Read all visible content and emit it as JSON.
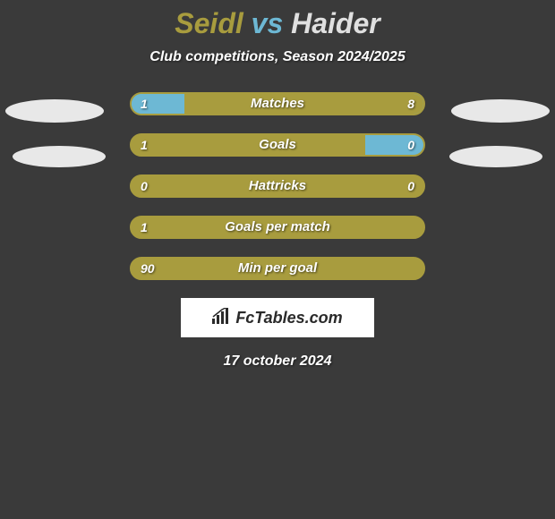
{
  "title": {
    "player1": "Seidl",
    "vs": "vs",
    "player2": "Haider"
  },
  "subtitle": "Club competitions, Season 2024/2025",
  "colors": {
    "player1": "#a89c3e",
    "player2": "#e0e0e0",
    "vs": "#6db8d4",
    "bar_primary": "#a89c3e",
    "bar_secondary": "#6db8d4",
    "bar_border": "#a89c3e",
    "avatar": "#e8e8e8"
  },
  "stats": [
    {
      "label": "Matches",
      "left_value": "1",
      "right_value": "8",
      "left_pct": 18,
      "right_pct": 82,
      "left_color": "#6db8d4",
      "right_color": "#a89c3e",
      "border_color": "#a89c3e"
    },
    {
      "label": "Goals",
      "left_value": "1",
      "right_value": "0",
      "left_pct": 80,
      "right_pct": 20,
      "left_color": "#a89c3e",
      "right_color": "#6db8d4",
      "border_color": "#a89c3e"
    },
    {
      "label": "Hattricks",
      "left_value": "0",
      "right_value": "0",
      "left_pct": 100,
      "right_pct": 0,
      "left_color": "#a89c3e",
      "right_color": "#a89c3e",
      "border_color": "#a89c3e"
    },
    {
      "label": "Goals per match",
      "left_value": "1",
      "right_value": "",
      "left_pct": 100,
      "right_pct": 0,
      "left_color": "#a89c3e",
      "right_color": "#a89c3e",
      "border_color": "#a89c3e"
    },
    {
      "label": "Min per goal",
      "left_value": "90",
      "right_value": "",
      "left_pct": 100,
      "right_pct": 0,
      "left_color": "#a89c3e",
      "right_color": "#a89c3e",
      "border_color": "#a89c3e"
    }
  ],
  "logo": {
    "text": "FcTables.com"
  },
  "date": "17 october 2024"
}
